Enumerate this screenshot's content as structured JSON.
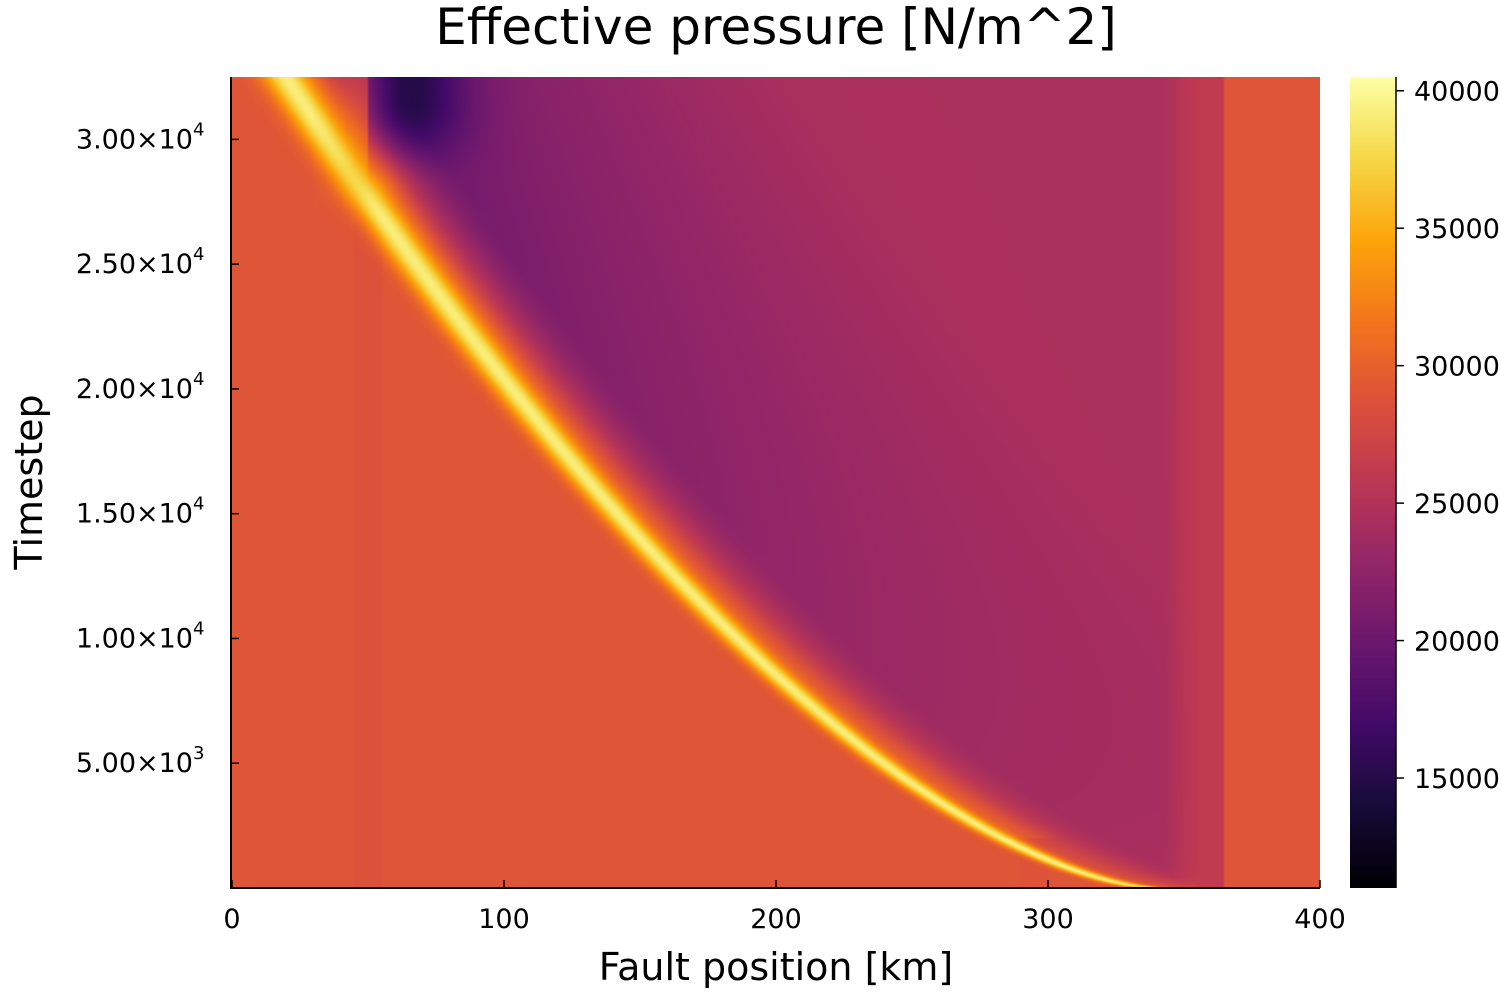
{
  "chart_data": {
    "type": "heatmap",
    "title": "Effective pressure [N/m^2]",
    "xlabel": "Fault position [km]",
    "ylabel": "Timestep",
    "xlim": [
      0,
      400
    ],
    "ylim": [
      0,
      32500
    ],
    "x_ticks": [
      {
        "value": 0,
        "label": "0"
      },
      {
        "value": 100,
        "label": "100"
      },
      {
        "value": 200,
        "label": "200"
      },
      {
        "value": 300,
        "label": "300"
      },
      {
        "value": 400,
        "label": "400"
      }
    ],
    "y_ticks": [
      {
        "value": 5000,
        "mantissa": "5.00×10",
        "exp": "3"
      },
      {
        "value": 10000,
        "mantissa": "1.00×10",
        "exp": "4"
      },
      {
        "value": 15000,
        "mantissa": "1.50×10",
        "exp": "4"
      },
      {
        "value": 20000,
        "mantissa": "2.00×10",
        "exp": "4"
      },
      {
        "value": 25000,
        "mantissa": "2.50×10",
        "exp": "4"
      },
      {
        "value": 30000,
        "mantissa": "3.00×10",
        "exp": "4"
      }
    ],
    "colorbar": {
      "colormap": "inferno",
      "range": [
        11000,
        40500
      ],
      "ticks": [
        {
          "value": 15000,
          "label": "15000"
        },
        {
          "value": 20000,
          "label": "20000"
        },
        {
          "value": 25000,
          "label": "25000"
        },
        {
          "value": 30000,
          "label": "30000"
        },
        {
          "value": 35000,
          "label": "35000"
        },
        {
          "value": 40000,
          "label": "40000"
        }
      ]
    },
    "field_description_values": {
      "background": 29000,
      "bright_front_peak": 40000,
      "minimum": 11000,
      "right_region": 24500,
      "right_band": 27000
    }
  }
}
